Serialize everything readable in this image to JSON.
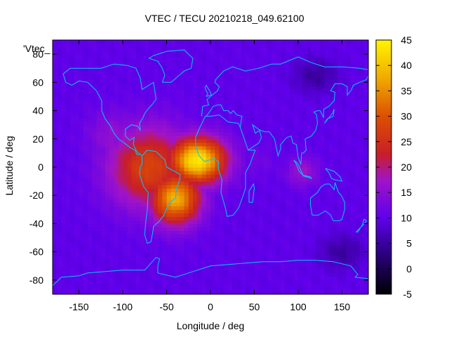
{
  "chart_data": {
    "type": "heatmap",
    "title": "VTEC / TECU 20210218_049.62100",
    "xlabel": "Longitude / deg",
    "ylabel": "Latitude / deg",
    "series_label": "'Vtec_",
    "xlim": [
      -180,
      180
    ],
    "ylim": [
      -90,
      90
    ],
    "x_ticks": [
      -150,
      -100,
      -50,
      0,
      50,
      100,
      150
    ],
    "y_ticks": [
      -80,
      -60,
      -40,
      -20,
      0,
      20,
      40,
      60,
      80
    ],
    "colorbar_range": [
      -5,
      45
    ],
    "colorbar_ticks": [
      -5,
      0,
      5,
      10,
      15,
      20,
      25,
      30,
      35,
      40,
      45
    ],
    "grid_resolution": {
      "dlon": 5,
      "dlat": 2.5
    },
    "peak": {
      "lon": -15,
      "lat": 5,
      "value": 44
    },
    "hotspots": [
      {
        "lon": -15,
        "lat": 5,
        "value": 44,
        "sx": 32,
        "sy": 16
      },
      {
        "lon": -40,
        "lat": -22,
        "value": 38,
        "sx": 28,
        "sy": 18
      },
      {
        "lon": -70,
        "lat": 0,
        "value": 28,
        "sx": 45,
        "sy": 28
      },
      {
        "lon": -110,
        "lat": 22,
        "value": 16,
        "sx": 30,
        "sy": 18
      },
      {
        "lon": 105,
        "lat": -3,
        "value": 17,
        "sx": 18,
        "sy": 10
      },
      {
        "lon": 55,
        "lat": 5,
        "value": 12,
        "sx": 20,
        "sy": 12
      }
    ],
    "background_value": 10,
    "cold_spots": [
      {
        "lon": 150,
        "lat": -60,
        "value": 5
      },
      {
        "lon": 120,
        "lat": 65,
        "value": 5
      }
    ],
    "colors": {
      "coastline": "#00c8ff",
      "frame": "#000000"
    }
  }
}
